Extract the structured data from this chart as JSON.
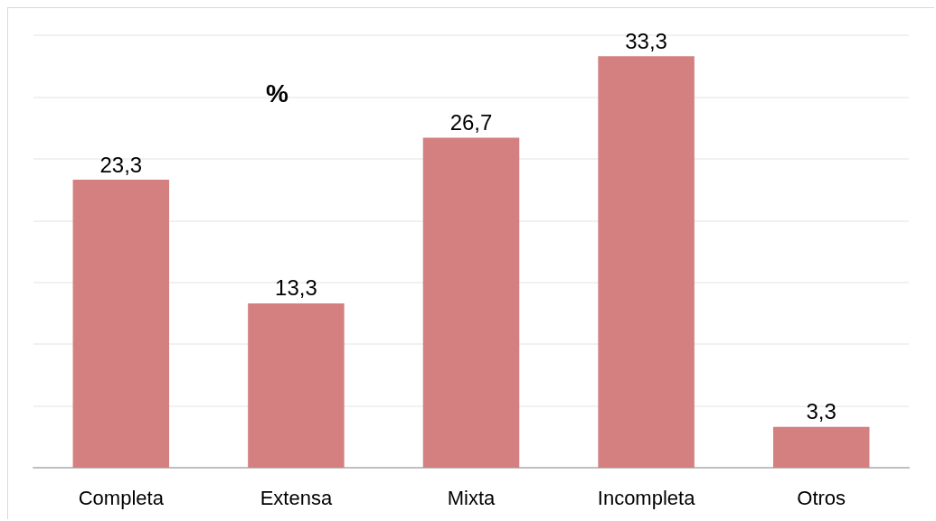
{
  "chart_data": {
    "type": "bar",
    "title": "%",
    "categories": [
      "Completa",
      "Extensa",
      "Mixta",
      "Incompleta",
      "Otros"
    ],
    "values": [
      23.3,
      13.3,
      26.7,
      33.3,
      3.3
    ],
    "value_labels": [
      "23,3",
      "13,3",
      "26,7",
      "33,3",
      "3,3"
    ],
    "color": "#d48080",
    "ylim": [
      0,
      35
    ],
    "yticks": [
      {
        "value": 0,
        "label": null
      },
      {
        "value": 5,
        "label": null
      },
      {
        "value": 10,
        "label": null
      },
      {
        "value": 15,
        "label": null
      },
      {
        "value": 20,
        "label": null
      },
      {
        "value": 25,
        "label": null
      },
      {
        "value": 30,
        "label": null
      },
      {
        "value": 35,
        "label": null
      }
    ],
    "grid": "y",
    "tick_labels": "x"
  }
}
